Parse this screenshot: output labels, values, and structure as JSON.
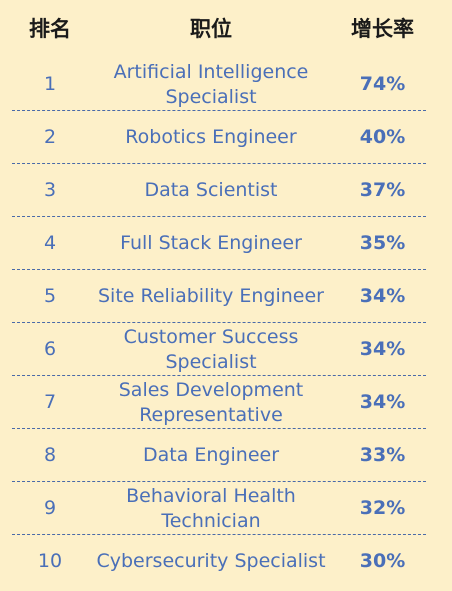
{
  "chart_data": {
    "type": "table",
    "columns": [
      "排名",
      "职位",
      "增长率"
    ],
    "rows": [
      {
        "rank": "1",
        "title": "Artificial Intelligence Specialist",
        "rate": "74%"
      },
      {
        "rank": "2",
        "title": "Robotics Engineer",
        "rate": "40%"
      },
      {
        "rank": "3",
        "title": "Data Scientist",
        "rate": "37%"
      },
      {
        "rank": "4",
        "title": "Full Stack Engineer",
        "rate": "35%"
      },
      {
        "rank": "5",
        "title": "Site Reliability Engineer",
        "rate": "34%"
      },
      {
        "rank": "6",
        "title": "Customer Success Specialist",
        "rate": "34%"
      },
      {
        "rank": "7",
        "title": "Sales Development Representative",
        "rate": "34%"
      },
      {
        "rank": "8",
        "title": "Data Engineer",
        "rate": "33%"
      },
      {
        "rank": "9",
        "title": "Behavioral Health Technician",
        "rate": "32%"
      },
      {
        "rank": "10",
        "title": "Cybersecurity Specialist",
        "rate": "30%"
      }
    ]
  },
  "colors": {
    "background": "#fdf0c9",
    "header_text": "#1a1a1a",
    "body_text": "#4a6fb8",
    "divider": "#4a6aa8"
  }
}
